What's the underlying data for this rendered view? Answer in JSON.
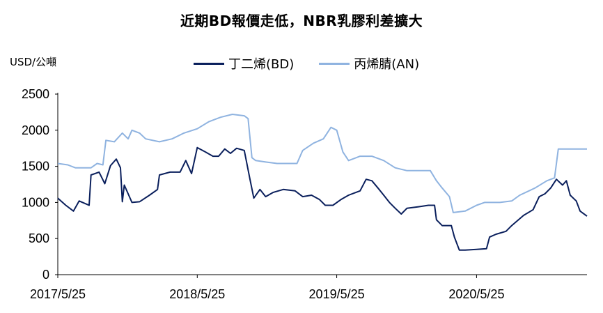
{
  "title": "近期BD報價走低，NBR乳膠利差擴大",
  "unit_label": "USD/公噸",
  "colors": {
    "bd": "#0a1f5c",
    "an": "#8fb3e0",
    "axis": "#000000"
  },
  "chart_data": {
    "type": "line",
    "title": "近期BD報價走低，NBR乳膠利差擴大",
    "ylabel": "USD/公噸",
    "xlabel": "",
    "ylim": [
      0,
      2500
    ],
    "yticks": [
      "0",
      "500",
      "1000",
      "1500",
      "2000",
      "2500"
    ],
    "xticks": [
      "2017/5/25",
      "2018/5/25",
      "2019/5/25",
      "2020/5/25"
    ],
    "xlim": [
      "2017/5/25",
      "2021/3/10"
    ],
    "grid": false,
    "legend": "top-center",
    "series": [
      {
        "name": "丁二烯(BD)",
        "color": "#0a1f5c",
        "points": [
          [
            "2017/5/25",
            1060
          ],
          [
            "2017/6/15",
            960
          ],
          [
            "2017/7/5",
            880
          ],
          [
            "2017/7/20",
            1020
          ],
          [
            "2017/8/15",
            960
          ],
          [
            "2017/8/20",
            1380
          ],
          [
            "2017/9/10",
            1420
          ],
          [
            "2017/9/25",
            1260
          ],
          [
            "2017/10/10",
            1510
          ],
          [
            "2017/10/25",
            1600
          ],
          [
            "2017/11/5",
            1480
          ],
          [
            "2017/11/10",
            1010
          ],
          [
            "2017/11/15",
            1240
          ],
          [
            "2017/12/5",
            1000
          ],
          [
            "2017/12/25",
            1010
          ],
          [
            "2018/1/20",
            1100
          ],
          [
            "2018/2/10",
            1180
          ],
          [
            "2018/2/15",
            1380
          ],
          [
            "2018/3/15",
            1420
          ],
          [
            "2018/4/10",
            1420
          ],
          [
            "2018/4/25",
            1580
          ],
          [
            "2018/5/10",
            1400
          ],
          [
            "2018/5/25",
            1760
          ],
          [
            "2018/6/15",
            1700
          ],
          [
            "2018/7/5",
            1640
          ],
          [
            "2018/7/20",
            1640
          ],
          [
            "2018/8/5",
            1740
          ],
          [
            "2018/8/20",
            1680
          ],
          [
            "2018/9/5",
            1750
          ],
          [
            "2018/9/25",
            1720
          ],
          [
            "2018/10/1",
            1560
          ],
          [
            "2018/10/10",
            1320
          ],
          [
            "2018/10/20",
            1060
          ],
          [
            "2018/11/5",
            1180
          ],
          [
            "2018/11/20",
            1080
          ],
          [
            "2018/12/10",
            1140
          ],
          [
            "2019/1/5",
            1180
          ],
          [
            "2019/2/5",
            1160
          ],
          [
            "2019/2/25",
            1080
          ],
          [
            "2019/3/20",
            1100
          ],
          [
            "2019/4/10",
            1040
          ],
          [
            "2019/4/25",
            960
          ],
          [
            "2019/5/15",
            960
          ],
          [
            "2019/6/5",
            1040
          ],
          [
            "2019/6/25",
            1100
          ],
          [
            "2019/7/25",
            1160
          ],
          [
            "2019/8/10",
            1320
          ],
          [
            "2019/8/25",
            1300
          ],
          [
            "2019/9/10",
            1200
          ],
          [
            "2019/9/25",
            1100
          ],
          [
            "2019/10/10",
            1000
          ],
          [
            "2019/10/25",
            920
          ],
          [
            "2019/11/10",
            840
          ],
          [
            "2019/11/25",
            920
          ],
          [
            "2019/12/25",
            940
          ],
          [
            "2020/1/20",
            960
          ],
          [
            "2020/2/5",
            960
          ],
          [
            "2020/2/10",
            760
          ],
          [
            "2020/2/25",
            680
          ],
          [
            "2020/3/20",
            680
          ],
          [
            "2020/3/28",
            520
          ],
          [
            "2020/4/10",
            340
          ],
          [
            "2020/4/25",
            340
          ],
          [
            "2020/5/25",
            350
          ],
          [
            "2020/6/20",
            360
          ],
          [
            "2020/6/28",
            520
          ],
          [
            "2020/7/15",
            560
          ],
          [
            "2020/8/10",
            600
          ],
          [
            "2020/8/25",
            680
          ],
          [
            "2020/9/25",
            820
          ],
          [
            "2020/10/20",
            900
          ],
          [
            "2020/11/5",
            1080
          ],
          [
            "2020/11/20",
            1120
          ],
          [
            "2020/12/5",
            1200
          ],
          [
            "2020/12/20",
            1320
          ],
          [
            "2021/1/5",
            1240
          ],
          [
            "2021/1/15",
            1300
          ],
          [
            "2021/1/25",
            1100
          ],
          [
            "2021/2/10",
            1020
          ],
          [
            "2021/2/20",
            880
          ],
          [
            "2021/3/10",
            810
          ]
        ]
      },
      {
        "name": "丙烯腈(AN)",
        "color": "#8fb3e0",
        "points": [
          [
            "2017/5/25",
            1540
          ],
          [
            "2017/6/20",
            1520
          ],
          [
            "2017/7/10",
            1480
          ],
          [
            "2017/8/20",
            1480
          ],
          [
            "2017/9/5",
            1540
          ],
          [
            "2017/9/20",
            1520
          ],
          [
            "2017/9/28",
            1860
          ],
          [
            "2017/10/20",
            1840
          ],
          [
            "2017/11/10",
            1960
          ],
          [
            "2017/11/25",
            1880
          ],
          [
            "2017/12/5",
            2000
          ],
          [
            "2017/12/25",
            1960
          ],
          [
            "2018/1/10",
            1880
          ],
          [
            "2018/2/15",
            1840
          ],
          [
            "2018/3/20",
            1880
          ],
          [
            "2018/4/20",
            1960
          ],
          [
            "2018/5/25",
            2020
          ],
          [
            "2018/6/25",
            2120
          ],
          [
            "2018/7/25",
            2180
          ],
          [
            "2018/8/25",
            2220
          ],
          [
            "2018/9/25",
            2200
          ],
          [
            "2018/10/5",
            2160
          ],
          [
            "2018/10/15",
            1620
          ],
          [
            "2018/10/25",
            1580
          ],
          [
            "2018/11/20",
            1560
          ],
          [
            "2018/12/20",
            1540
          ],
          [
            "2019/1/20",
            1540
          ],
          [
            "2019/2/10",
            1540
          ],
          [
            "2019/2/25",
            1720
          ],
          [
            "2019/3/25",
            1820
          ],
          [
            "2019/4/20",
            1880
          ],
          [
            "2019/5/10",
            2040
          ],
          [
            "2019/5/25",
            2000
          ],
          [
            "2019/6/10",
            1700
          ],
          [
            "2019/6/25",
            1580
          ],
          [
            "2019/7/25",
            1640
          ],
          [
            "2019/8/25",
            1640
          ],
          [
            "2019/9/25",
            1580
          ],
          [
            "2019/10/25",
            1480
          ],
          [
            "2019/11/25",
            1440
          ],
          [
            "2019/12/25",
            1440
          ],
          [
            "2020/1/25",
            1440
          ],
          [
            "2020/2/10",
            1300
          ],
          [
            "2020/2/25",
            1200
          ],
          [
            "2020/3/15",
            1080
          ],
          [
            "2020/3/25",
            860
          ],
          [
            "2020/4/25",
            880
          ],
          [
            "2020/5/25",
            960
          ],
          [
            "2020/6/15",
            1000
          ],
          [
            "2020/7/25",
            1000
          ],
          [
            "2020/8/25",
            1020
          ],
          [
            "2020/9/15",
            1100
          ],
          [
            "2020/10/25",
            1200
          ],
          [
            "2020/11/25",
            1300
          ],
          [
            "2020/12/15",
            1340
          ],
          [
            "2020/12/25",
            1740
          ],
          [
            "2021/1/25",
            1740
          ],
          [
            "2021/3/10",
            1740
          ]
        ]
      }
    ]
  }
}
